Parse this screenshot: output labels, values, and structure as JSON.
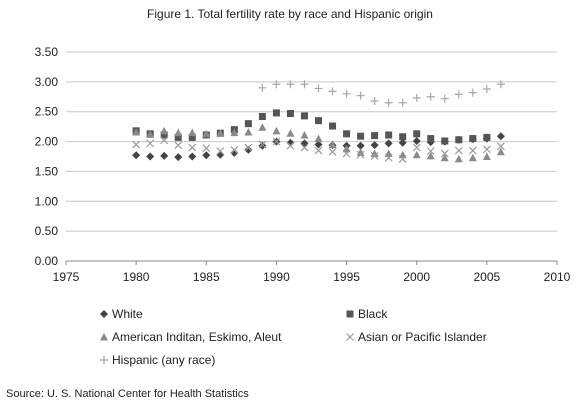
{
  "chart_data": {
    "type": "scatter",
    "title": "Figure 1. Total fertility rate by race and Hispanic origin",
    "xlim": [
      1975,
      2010
    ],
    "ylim": [
      0,
      3.5
    ],
    "xticks": [
      1975,
      1980,
      1985,
      1990,
      1995,
      2000,
      2005,
      2010
    ],
    "yticks": [
      "0.00",
      "0.50",
      "1.00",
      "1.50",
      "2.00",
      "2.50",
      "3.00",
      "3.50"
    ],
    "grid": true,
    "legend_position": "bottom",
    "series": [
      {
        "name": "White",
        "marker": "diamond",
        "x": [
          1980,
          1981,
          1982,
          1983,
          1984,
          1985,
          1986,
          1987,
          1988,
          1989,
          1990,
          1991,
          1992,
          1993,
          1994,
          1995,
          1996,
          1997,
          1998,
          1999,
          2000,
          2001,
          2002,
          2003,
          2004,
          2005,
          2006
        ],
        "y": [
          1.77,
          1.75,
          1.76,
          1.74,
          1.75,
          1.77,
          1.78,
          1.81,
          1.86,
          1.93,
          2.0,
          1.98,
          1.97,
          1.95,
          1.94,
          1.93,
          1.93,
          1.94,
          1.97,
          1.98,
          2.01,
          1.99,
          2.0,
          2.03,
          2.04,
          2.05,
          2.09
        ]
      },
      {
        "name": "Black",
        "marker": "square",
        "x": [
          1980,
          1981,
          1982,
          1983,
          1984,
          1985,
          1986,
          1987,
          1988,
          1989,
          1990,
          1991,
          1992,
          1993,
          1994,
          1995,
          1996,
          1997,
          1998,
          1999,
          2000,
          2001,
          2002,
          2003,
          2004,
          2005
        ],
        "y": [
          2.18,
          2.13,
          2.11,
          2.07,
          2.07,
          2.11,
          2.14,
          2.2,
          2.3,
          2.42,
          2.48,
          2.47,
          2.43,
          2.35,
          2.26,
          2.13,
          2.09,
          2.1,
          2.11,
          2.08,
          2.13,
          2.05,
          2.01,
          2.03,
          2.05,
          2.07
        ]
      },
      {
        "name": "American Inditan, Eskimo, Aleut",
        "marker": "triangle",
        "x": [
          1980,
          1981,
          1982,
          1983,
          1984,
          1985,
          1986,
          1987,
          1988,
          1989,
          1990,
          1991,
          1992,
          1993,
          1994,
          1995,
          1996,
          1997,
          1998,
          1999,
          2000,
          2001,
          2002,
          2003,
          2004,
          2005,
          2006
        ],
        "y": [
          2.16,
          2.12,
          2.18,
          2.15,
          2.15,
          2.13,
          2.14,
          2.15,
          2.16,
          2.24,
          2.18,
          2.14,
          2.11,
          2.05,
          1.95,
          1.88,
          1.82,
          1.8,
          1.8,
          1.78,
          1.78,
          1.76,
          1.73,
          1.71,
          1.73,
          1.75,
          1.83
        ]
      },
      {
        "name": "Asian or Pacific Islander",
        "marker": "x",
        "x": [
          1980,
          1981,
          1982,
          1983,
          1984,
          1985,
          1986,
          1987,
          1988,
          1989,
          1990,
          1991,
          1992,
          1993,
          1994,
          1995,
          1996,
          1997,
          1998,
          1999,
          2000,
          2001,
          2002,
          2003,
          2004,
          2005,
          2006
        ],
        "y": [
          1.95,
          1.97,
          2.02,
          1.94,
          1.9,
          1.89,
          1.84,
          1.86,
          1.9,
          1.95,
          2.0,
          1.93,
          1.9,
          1.85,
          1.83,
          1.8,
          1.78,
          1.76,
          1.73,
          1.71,
          1.9,
          1.84,
          1.8,
          1.85,
          1.85,
          1.87,
          1.92
        ]
      },
      {
        "name": "Hispanic (any race)",
        "marker": "plus",
        "x": [
          1989,
          1990,
          1991,
          1992,
          1993,
          1994,
          1995,
          1996,
          1997,
          1998,
          1999,
          2000,
          2001,
          2002,
          2003,
          2004,
          2005,
          2006
        ],
        "y": [
          2.9,
          2.96,
          2.96,
          2.96,
          2.89,
          2.84,
          2.8,
          2.77,
          2.68,
          2.65,
          2.65,
          2.73,
          2.75,
          2.72,
          2.79,
          2.82,
          2.88,
          2.96
        ]
      }
    ],
    "source": "Source: U. S. National Center for Health Statistics"
  }
}
